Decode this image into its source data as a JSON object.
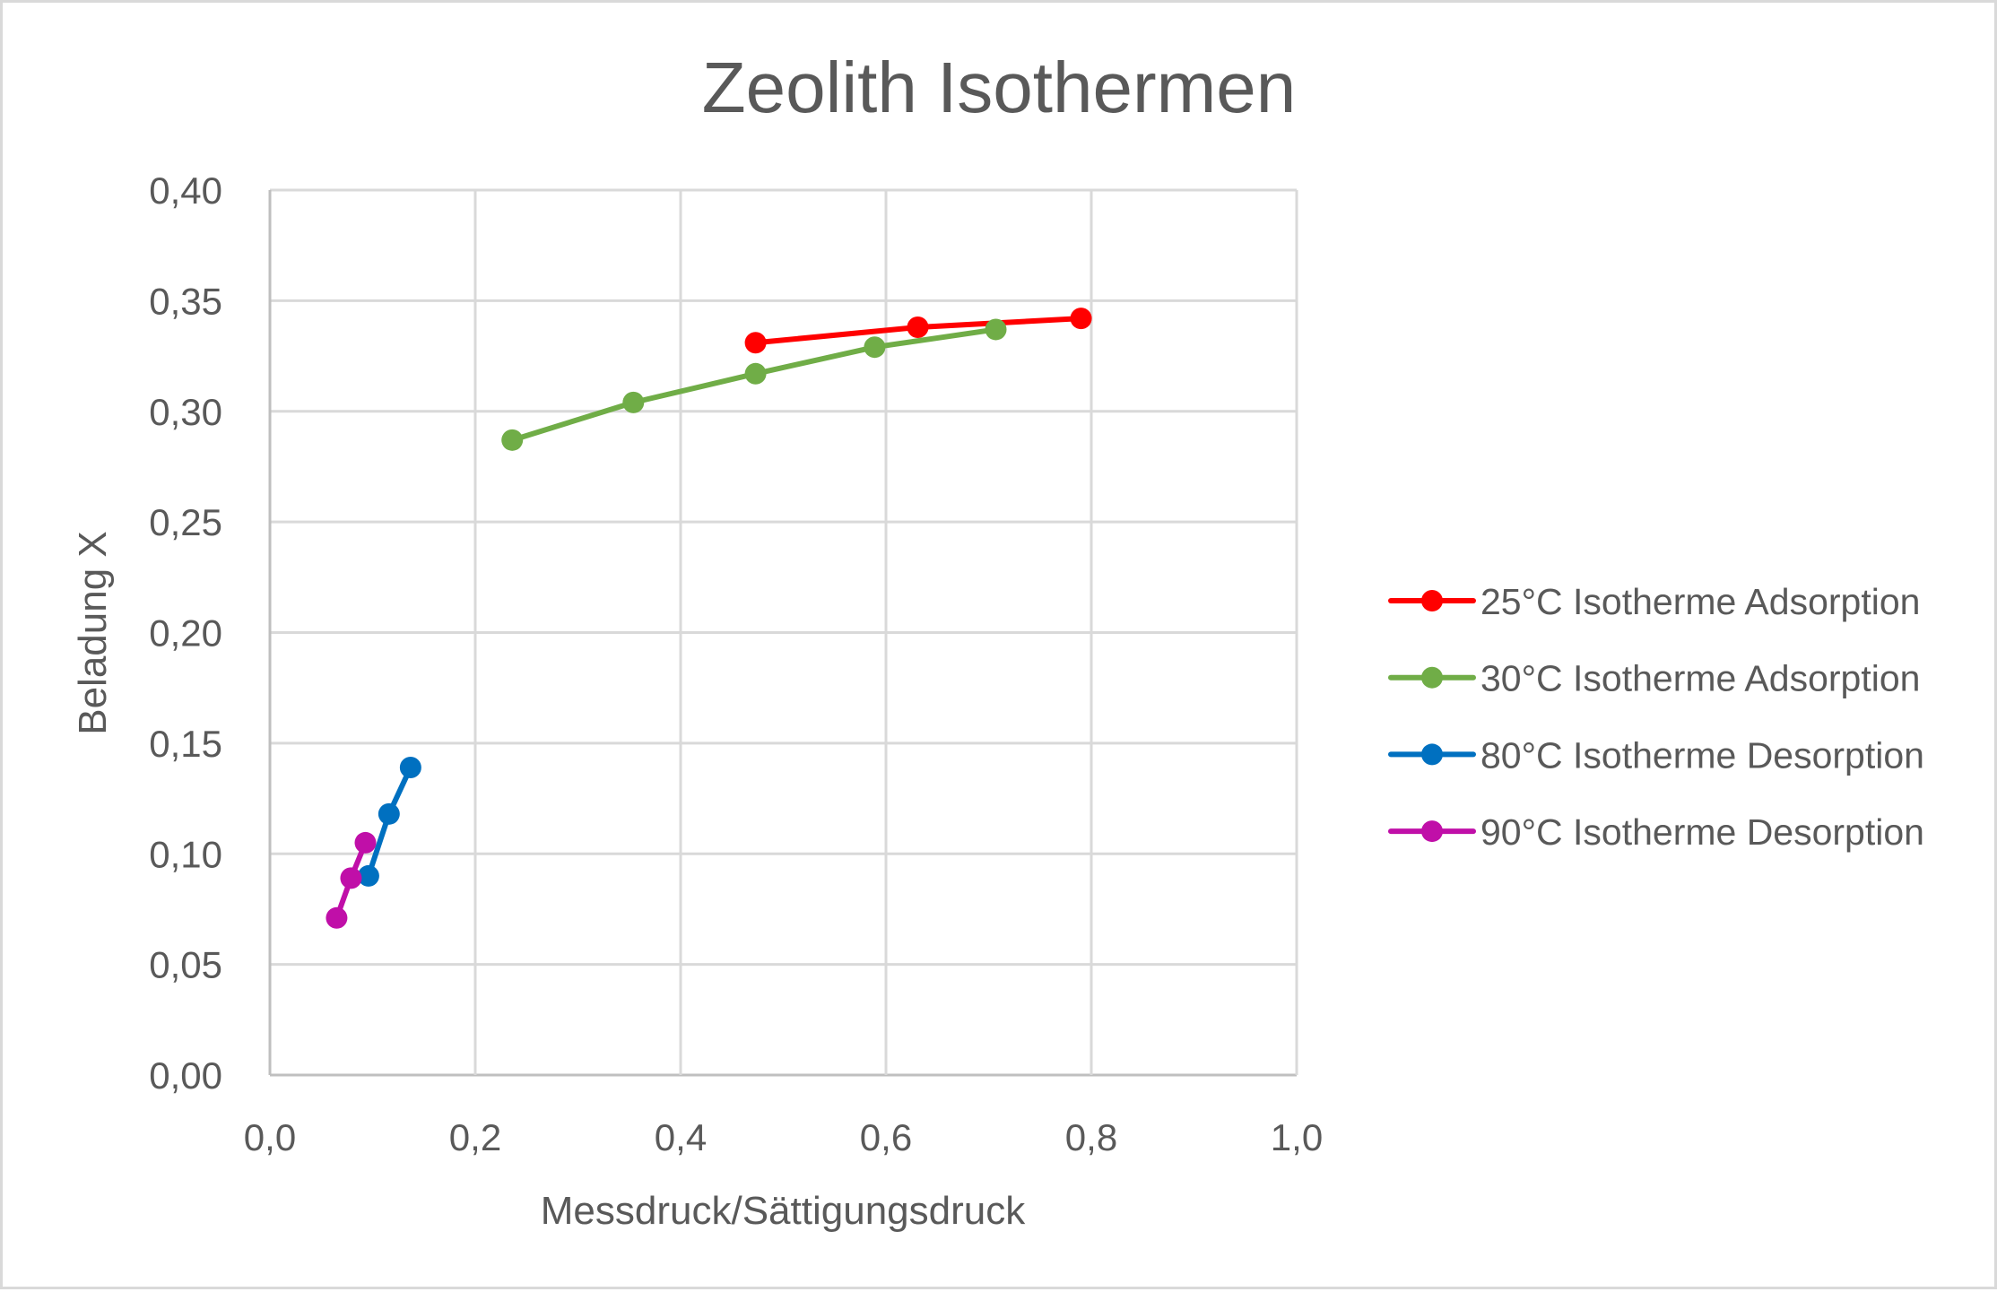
{
  "chart_data": {
    "type": "line",
    "title": "Zeolith Isothermen",
    "xlabel": "Messdruck/Sättigungsdruck",
    "ylabel": "Beladung X",
    "xlim": [
      0.0,
      1.0
    ],
    "ylim": [
      0.0,
      0.4
    ],
    "x_ticks": [
      0.0,
      0.2,
      0.4,
      0.6,
      0.8,
      1.0
    ],
    "x_tick_labels": [
      "0,0",
      "0,2",
      "0,4",
      "0,6",
      "0,8",
      "1,0"
    ],
    "y_ticks": [
      0.0,
      0.05,
      0.1,
      0.15,
      0.2,
      0.25,
      0.3,
      0.35,
      0.4
    ],
    "y_tick_labels": [
      "0,00",
      "0,05",
      "0,10",
      "0,15",
      "0,20",
      "0,25",
      "0,30",
      "0,35",
      "0,40"
    ],
    "grid": true,
    "legend_position": "right",
    "series": [
      {
        "name": "25°C Isotherme Adsorption",
        "color": "#ff0000",
        "x": [
          0.473,
          0.631,
          0.79
        ],
        "y": [
          0.331,
          0.338,
          0.342
        ]
      },
      {
        "name": "30°C Isotherme Adsorption",
        "color": "#70ad47",
        "x": [
          0.236,
          0.354,
          0.473,
          0.589,
          0.707
        ],
        "y": [
          0.287,
          0.304,
          0.317,
          0.329,
          0.337
        ]
      },
      {
        "name": "80°C Isotherme Desorption",
        "color": "#0070c0",
        "x": [
          0.096,
          0.116,
          0.137
        ],
        "y": [
          0.09,
          0.118,
          0.139
        ]
      },
      {
        "name": "90°C Isotherme Desorption",
        "color": "#c00fa8",
        "x": [
          0.065,
          0.079,
          0.093
        ],
        "y": [
          0.071,
          0.089,
          0.105
        ]
      }
    ]
  }
}
